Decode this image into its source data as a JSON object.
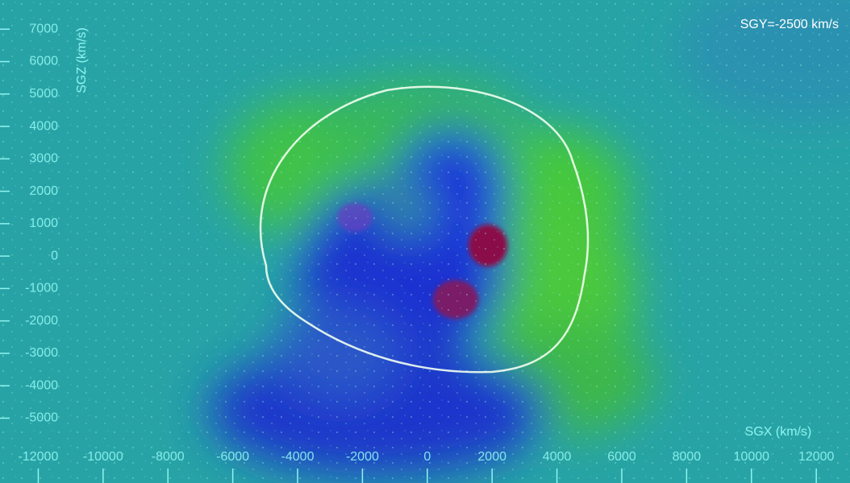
{
  "chart_data": {
    "type": "density-map",
    "annotation": "SGY=-2500 km/s",
    "x_label": "SGX (km/s)",
    "y_label": "SGZ (km/s)",
    "xlim": [
      -13180,
      13040
    ],
    "ylim": [
      -7000,
      7900
    ],
    "xticks": [
      -12000,
      -10000,
      -8000,
      -6000,
      -4000,
      -2000,
      0,
      2000,
      4000,
      6000,
      8000,
      10000,
      12000
    ],
    "yticks": [
      7000,
      6000,
      5000,
      4000,
      3000,
      2000,
      1000,
      0,
      -1000,
      -2000,
      -3000,
      -4000,
      -5000
    ],
    "color": "#8ff4f0"
  }
}
